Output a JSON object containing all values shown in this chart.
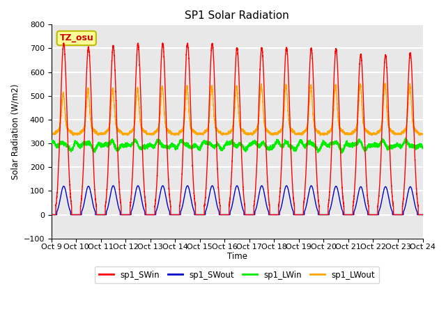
{
  "title": "SP1 Solar Radiation",
  "ylabel": "Solar Radiation (W/m2)",
  "xlabel": "Time",
  "xlim": [
    0,
    15
  ],
  "ylim": [
    -100,
    800
  ],
  "yticks": [
    -100,
    0,
    100,
    200,
    300,
    400,
    500,
    600,
    700,
    800
  ],
  "xtick_labels": [
    "Oct 9",
    "Oct 10",
    "Oct 11",
    "Oct 12",
    "Oct 13",
    "Oct 14",
    "Oct 15",
    "Oct 16",
    "Oct 17",
    "Oct 18",
    "Oct 19",
    "Oct 20",
    "Oct 21",
    "Oct 22",
    "Oct 23",
    "Oct 24"
  ],
  "xtick_positions": [
    0,
    1,
    2,
    3,
    4,
    5,
    6,
    7,
    8,
    9,
    10,
    11,
    12,
    13,
    14,
    15
  ],
  "colors": {
    "SWin": "#FF0000",
    "SWout": "#0000CC",
    "LWin": "#00EE00",
    "LWout": "#FFA500"
  },
  "legend_labels": [
    "sp1_SWin",
    "sp1_SWout",
    "sp1_LWin",
    "sp1_LWout"
  ],
  "annotation_text": "TZ_osu",
  "annotation_color": "#CC0000",
  "annotation_bg": "#FFFF99",
  "annotation_border": "#BBBB00",
  "plot_bg": "#E8E8E8",
  "grid_color": "#FFFFFF",
  "n_days": 15,
  "SWin_peaks": [
    720,
    705,
    710,
    718,
    720,
    720,
    720,
    702,
    703,
    703,
    700,
    698,
    674,
    671,
    680
  ],
  "SWout_peaks": [
    120,
    120,
    122,
    122,
    122,
    122,
    122,
    122,
    122,
    122,
    122,
    120,
    118,
    118,
    118
  ],
  "LWin_base": 287,
  "LWin_variation": 20,
  "LWout_base": 340,
  "LWout_day_plateau": 370,
  "LWout_spike_peaks": [
    510,
    530,
    530,
    530,
    540,
    540,
    540,
    540,
    545,
    545,
    545,
    545,
    550,
    550,
    545
  ]
}
